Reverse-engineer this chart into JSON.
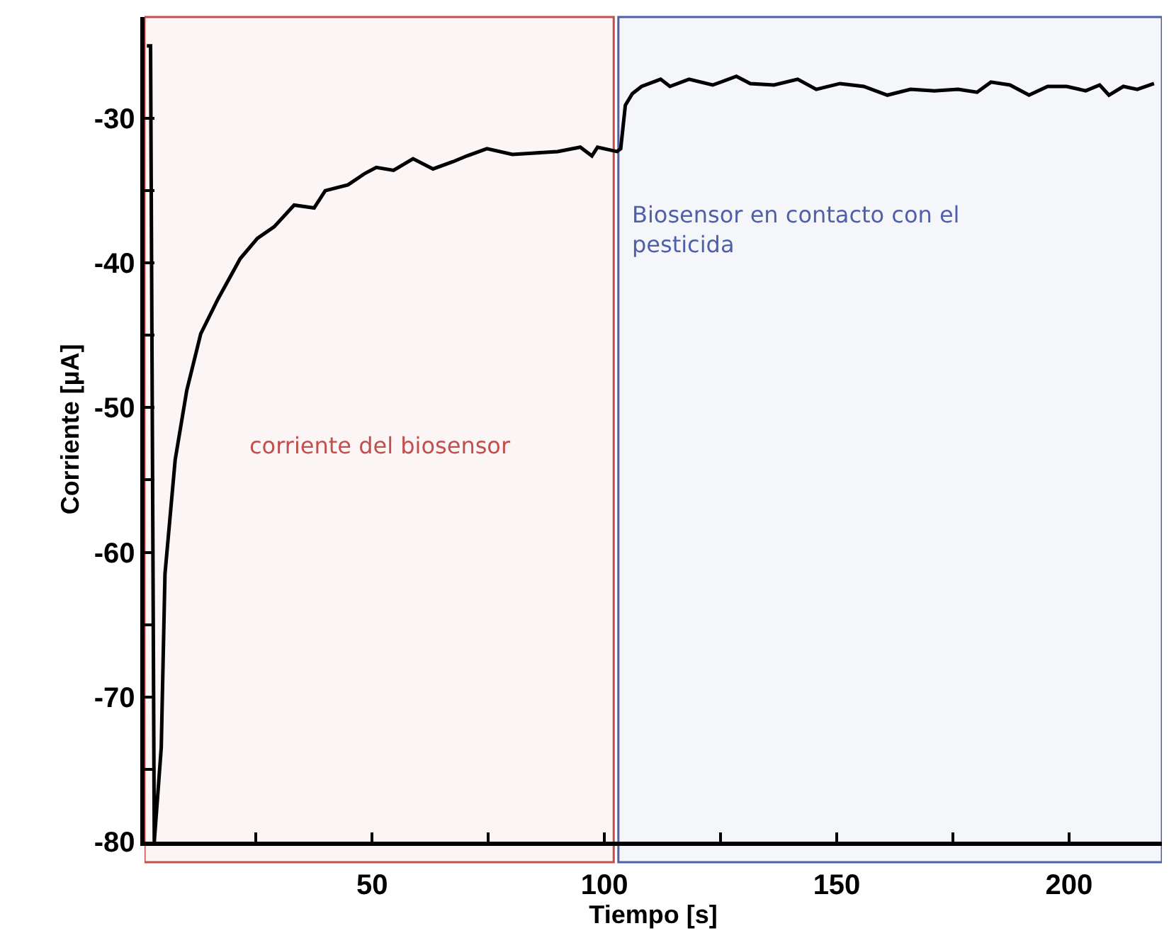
{
  "chart_data": {
    "type": "line",
    "xlabel": "Tiempo [s]",
    "ylabel": "Corriente [µA]",
    "xlim": [
      1,
      220
    ],
    "ylim": [
      -80,
      -23
    ],
    "xticks": [
      {
        "value": 25,
        "label": null
      },
      50,
      {
        "value": 75,
        "label": null
      },
      100,
      {
        "value": 125,
        "label": null
      },
      150,
      {
        "value": 175,
        "label": null
      },
      200
    ],
    "yticks": [
      -80,
      {
        "value": -75,
        "label": null
      },
      -70,
      {
        "value": -65,
        "label": null
      },
      -60,
      {
        "value": -55,
        "label": null
      },
      -50,
      {
        "value": -45,
        "label": null
      },
      -40,
      {
        "value": -35,
        "label": null
      },
      -30
    ],
    "grid": false,
    "marker": "none",
    "line_style": "solid",
    "bands": [
      {
        "axis": "x",
        "from": 1,
        "to": 102,
        "label": "corriente del biosensor",
        "color": "#c0504d"
      },
      {
        "axis": "x",
        "from": 103,
        "to": 220,
        "label": "Biosensor en contacto con el pesticida",
        "color": "#4f5fa8"
      }
    ],
    "series": [
      {
        "color": "#000000",
        "x": [
          1.5,
          2.3,
          3.1,
          4.6,
          5.4,
          7.6,
          10.1,
          13.1,
          16.8,
          21.6,
          25.3,
          28.9,
          33.2,
          37.5,
          39.9,
          44.8,
          48.5,
          50.9,
          54.6,
          58.8,
          63.1,
          67.4,
          70.4,
          74.7,
          80.2,
          85.0,
          89.9,
          94.8,
          97.3,
          98.5,
          102.7,
          103.5,
          104.5,
          106.0,
          108.0,
          112.1,
          114.1,
          118.2,
          123.3,
          128.4,
          131.4,
          136.5,
          141.6,
          145.6,
          150.7,
          155.8,
          160.9,
          165.9,
          171.0,
          176.1,
          180.2,
          183.2,
          187.3,
          191.4,
          195.4,
          199.5,
          203.6,
          206.6,
          208.6,
          211.7,
          214.7,
          218.3
        ],
        "values": [
          -25.0,
          -25.0,
          -80.0,
          -73.5,
          -61.5,
          -53.6,
          -48.8,
          -44.9,
          -42.5,
          -39.7,
          -38.3,
          -37.5,
          -36.0,
          -36.2,
          -35.0,
          -34.6,
          -33.8,
          -33.4,
          -33.6,
          -32.8,
          -33.5,
          -33.0,
          -32.6,
          -32.1,
          -32.5,
          -32.4,
          -32.3,
          -32.0,
          -32.6,
          -32.0,
          -32.3,
          -32.1,
          -29.1,
          -28.3,
          -27.8,
          -27.3,
          -27.8,
          -27.3,
          -27.7,
          -27.1,
          -27.6,
          -27.7,
          -27.3,
          -28.0,
          -27.6,
          -27.8,
          -28.4,
          -28.0,
          -28.1,
          -28.0,
          -28.2,
          -27.5,
          -27.7,
          -28.4,
          -27.8,
          -27.8,
          -28.1,
          -27.7,
          -28.4,
          -27.8,
          -28.0,
          -27.6
        ]
      }
    ]
  }
}
